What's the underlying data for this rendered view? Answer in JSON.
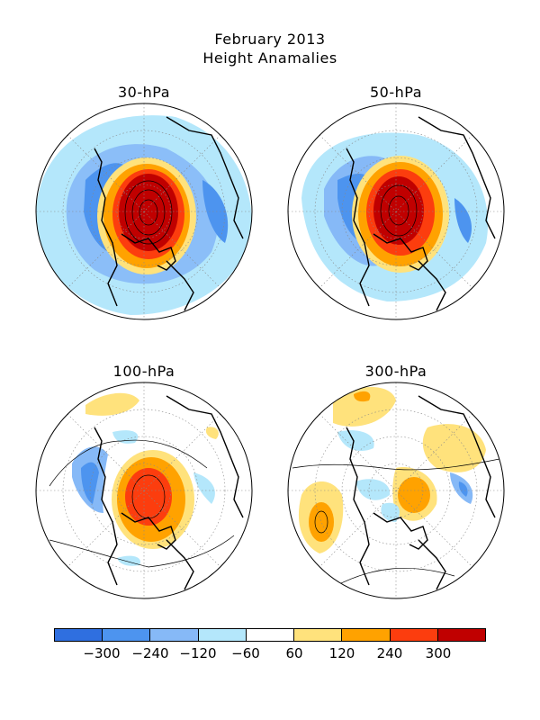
{
  "header": {
    "title": "February 2013",
    "subtitle": "Height Anamalies"
  },
  "panels": [
    {
      "label": "30-hPa"
    },
    {
      "label": "50-hPa"
    },
    {
      "label": "100-hPa"
    },
    {
      "label": "300-hPa"
    }
  ],
  "colorbar": {
    "colors": [
      "#2f6fe0",
      "#4d94ef",
      "#86b9f7",
      "#b4e7fb",
      "#ffffff",
      "#ffe27c",
      "#ffa200",
      "#fc3d0e",
      "#c00000"
    ],
    "ticks": [
      "-300",
      "-240",
      "-120",
      "-60",
      "60",
      "120",
      "240",
      "300"
    ]
  }
}
